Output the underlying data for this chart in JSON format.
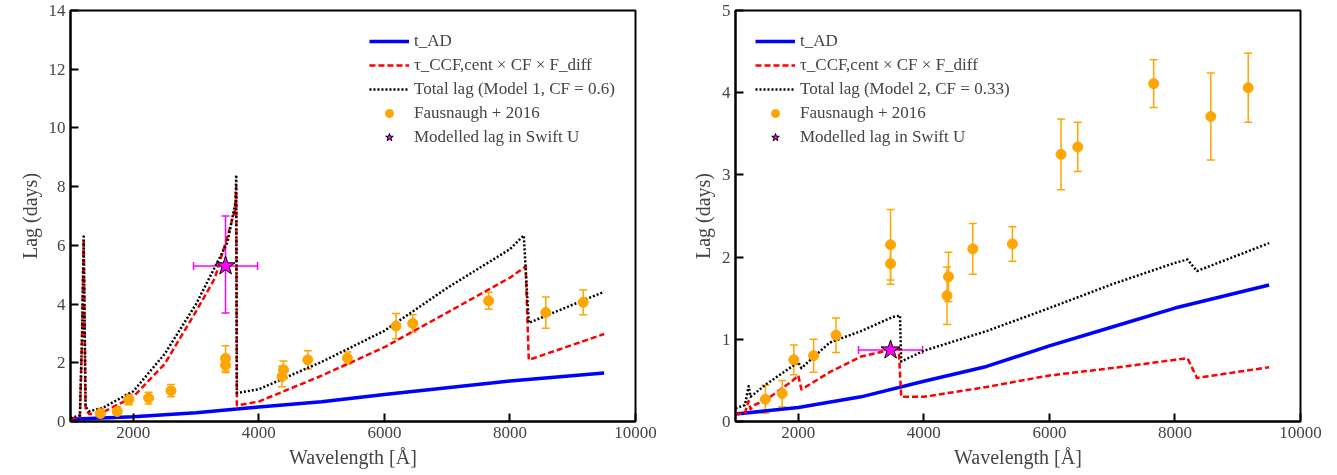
{
  "chart_data": [
    {
      "type": "line",
      "xlabel": "Wavelength [Å]",
      "ylabel": "Lag (days)",
      "xlim": [
        1000,
        10000
      ],
      "ylim": [
        0,
        14
      ],
      "xticks": [
        2000,
        4000,
        6000,
        8000,
        10000
      ],
      "yticks": [
        0,
        2,
        4,
        6,
        8,
        10,
        12,
        14
      ],
      "grid": false,
      "legend": "top right",
      "series": [
        {
          "name": "t_AD",
          "color": "#0000ff",
          "line_style": "solid",
          "x": [
            1000,
            2000,
            3000,
            4000,
            5000,
            6000,
            7000,
            8000,
            9500
          ],
          "values": [
            0.08,
            0.16,
            0.3,
            0.49,
            0.67,
            0.92,
            1.15,
            1.38,
            1.65
          ]
        },
        {
          "name": "τ_CCF,cent × CF × F_diff",
          "color": "#ff0000",
          "line_style": "dashed",
          "x": [
            1000,
            1150,
            1185,
            1210,
            1240,
            1300,
            1500,
            2000,
            2500,
            3000,
            3300,
            3500,
            3620,
            3640,
            3650,
            4000,
            5000,
            6000,
            7000,
            8000,
            8250,
            8300,
            9500
          ],
          "values": [
            0.1,
            0.15,
            3.0,
            6.2,
            0.4,
            0.25,
            0.3,
            0.84,
            1.96,
            3.75,
            4.88,
            6.3,
            7.2,
            8.0,
            0.55,
            0.68,
            1.56,
            2.53,
            3.71,
            4.9,
            5.28,
            2.1,
            2.98
          ]
        },
        {
          "name": "Total lag (Model 1, CF = 0.6)",
          "color": "#000000",
          "line_style": "dotted",
          "x": [
            1000,
            1150,
            1185,
            1210,
            1240,
            1300,
            1500,
            2000,
            2500,
            3000,
            3500,
            3630,
            3640,
            3650,
            4000,
            5000,
            6000,
            7000,
            8000,
            8220,
            8300,
            9500
          ],
          "values": [
            0.12,
            0.2,
            3.0,
            6.3,
            0.5,
            0.35,
            0.45,
            1.03,
            2.3,
            4.0,
            6.1,
            7.5,
            8.4,
            0.97,
            1.1,
            2.03,
            3.09,
            4.55,
            5.87,
            6.34,
            3.36,
            4.42
          ]
        },
        {
          "name": "Fausnaugh + 2016",
          "type": "scatter",
          "marker": "circle",
          "color": "#ffa500",
          "x": [
            1476,
            1744,
            1929,
            2244,
            2601,
            3470,
            3470,
            4369,
            4393,
            4780,
            5411,
            6185,
            6452,
            7661,
            8571,
            9167
          ],
          "values": [
            0.27,
            0.34,
            0.75,
            0.8,
            1.05,
            2.15,
            1.92,
            1.53,
            1.76,
            2.1,
            2.16,
            3.25,
            3.34,
            4.11,
            3.71,
            4.06
          ],
          "errors": [
            0.17,
            0.16,
            0.18,
            0.2,
            0.21,
            0.43,
            0.25,
            0.35,
            0.3,
            0.31,
            0.21,
            0.43,
            0.3,
            0.29,
            0.53,
            0.42
          ]
        },
        {
          "name": "Modelled lag in Swift U",
          "type": "scatter",
          "marker": "star",
          "color": "#ff00ff",
          "x": [
            3470
          ],
          "values": [
            5.3
          ],
          "errors": [
            [
              3.7,
              7.0
            ]
          ],
          "xerrors": [
            [
              2960,
              3980
            ]
          ]
        }
      ]
    },
    {
      "type": "line",
      "xlabel": "Wavelength [Å]",
      "ylabel": "Lag (days)",
      "xlim": [
        1000,
        10000
      ],
      "ylim": [
        0,
        5
      ],
      "xticks": [
        2000,
        4000,
        6000,
        8000,
        10000
      ],
      "yticks": [
        0,
        1,
        2,
        3,
        4,
        5
      ],
      "grid": false,
      "legend": "top left",
      "series": [
        {
          "name": "t_AD",
          "color": "#0000ff",
          "line_style": "solid",
          "x": [
            1000,
            2000,
            3000,
            4000,
            5000,
            6000,
            7000,
            8000,
            9500
          ],
          "values": [
            0.09,
            0.17,
            0.3,
            0.49,
            0.67,
            0.92,
            1.15,
            1.38,
            1.66
          ]
        },
        {
          "name": "τ_CCF,cent × CF × F_diff",
          "color": "#ff0000",
          "line_style": "dashed",
          "x": [
            1000,
            1150,
            1208,
            1240,
            1300,
            1500,
            1900,
            2000,
            2050,
            2500,
            3000,
            3400,
            3600,
            3640,
            4000,
            5000,
            6000,
            7000,
            8000,
            8200,
            8350,
            9500
          ],
          "values": [
            0.09,
            0.1,
            0.25,
            0.15,
            0.2,
            0.27,
            0.49,
            0.56,
            0.39,
            0.6,
            0.79,
            0.86,
            0.89,
            0.3,
            0.3,
            0.42,
            0.56,
            0.65,
            0.75,
            0.77,
            0.53,
            0.66
          ]
        },
        {
          "name": "Total lag (Model 2, CF = 0.33)",
          "color": "#000000",
          "line_style": "dotted",
          "x": [
            1000,
            1150,
            1210,
            1240,
            1500,
            2000,
            2050,
            2500,
            3000,
            3500,
            3620,
            3640,
            4000,
            5000,
            6000,
            7000,
            8000,
            8200,
            8350,
            9500
          ],
          "values": [
            0.16,
            0.2,
            0.43,
            0.3,
            0.46,
            0.72,
            0.65,
            0.96,
            1.1,
            1.27,
            1.29,
            0.73,
            0.86,
            1.1,
            1.38,
            1.67,
            1.93,
            1.97,
            1.83,
            2.17
          ]
        },
        {
          "name": "Fausnaugh + 2016",
          "type": "scatter",
          "marker": "circle",
          "color": "#ffa500",
          "x": [
            1476,
            1744,
            1929,
            2244,
            2601,
            3470,
            3470,
            4369,
            4393,
            4780,
            5411,
            6185,
            6452,
            7661,
            8571,
            9167
          ],
          "values": [
            0.27,
            0.34,
            0.75,
            0.8,
            1.05,
            2.15,
            1.92,
            1.53,
            1.76,
            2.1,
            2.16,
            3.25,
            3.34,
            4.11,
            3.71,
            4.06
          ],
          "errors": [
            0.17,
            0.16,
            0.18,
            0.2,
            0.21,
            0.43,
            0.25,
            0.35,
            0.3,
            0.31,
            0.21,
            0.43,
            0.3,
            0.29,
            0.53,
            0.42
          ]
        },
        {
          "name": "Modelled lag in Swift U",
          "type": "scatter",
          "marker": "star",
          "color": "#ff00ff",
          "x": [
            3470
          ],
          "values": [
            0.87
          ],
          "xerrors": [
            [
              2960,
              3980
            ]
          ]
        }
      ]
    }
  ]
}
